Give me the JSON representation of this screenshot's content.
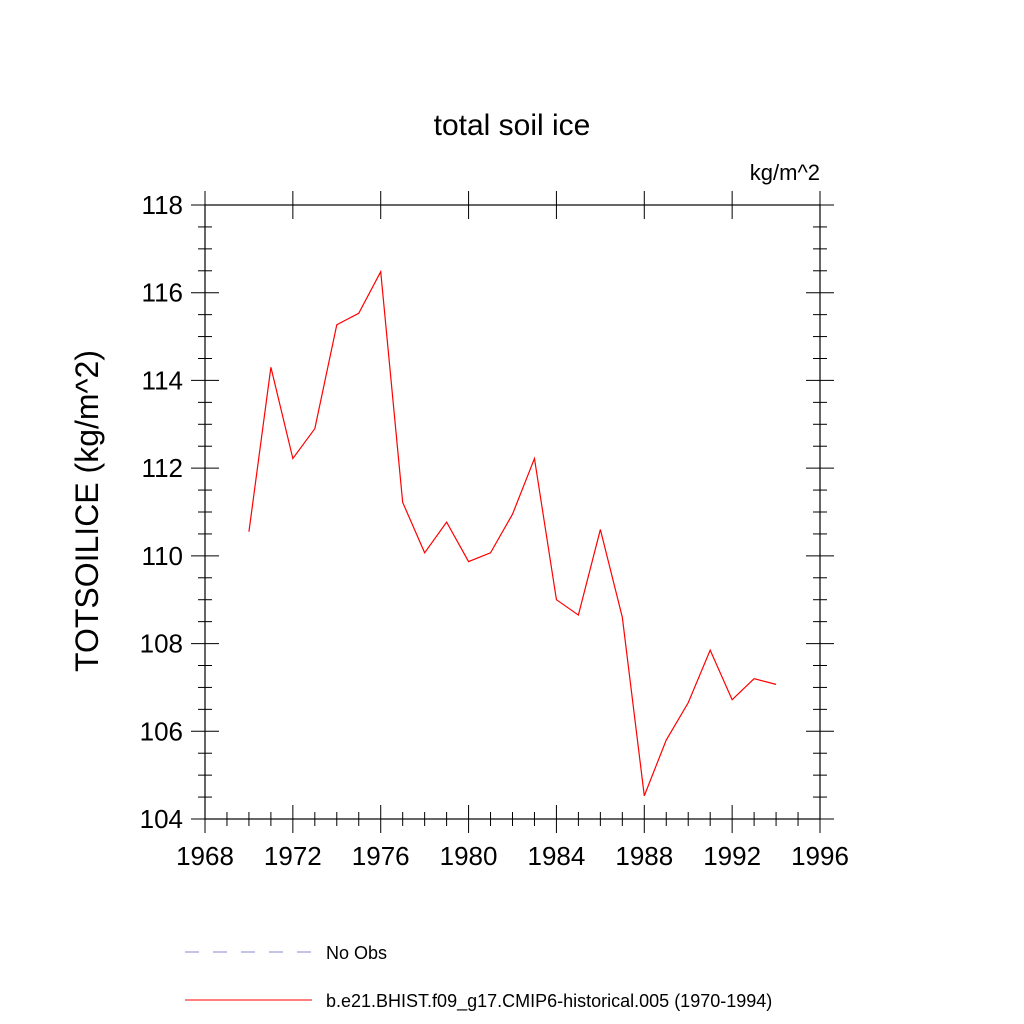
{
  "chart_data": {
    "type": "line",
    "title": "total soil ice",
    "units_label": "kg/m^2",
    "xlabel": "",
    "ylabel": "TOTSOILICE  (kg/m^2)",
    "xlim": [
      1968,
      1996
    ],
    "ylim": [
      104,
      118
    ],
    "xticks": [
      1968,
      1972,
      1976,
      1980,
      1984,
      1988,
      1992,
      1996
    ],
    "yticks": [
      104,
      106,
      108,
      110,
      112,
      114,
      116,
      118
    ],
    "grid": false,
    "legend_position": "bottom",
    "series": [
      {
        "name": "No Obs",
        "color": "#8a8ad0",
        "dash": "dashed",
        "x": [],
        "y": []
      },
      {
        "name": "b.e21.BHIST.f09_g17.CMIP6-historical.005 (1970-1994)",
        "color": "#ff0000",
        "dash": "solid",
        "x": [
          1970,
          1971,
          1972,
          1973,
          1974,
          1975,
          1976,
          1977,
          1978,
          1979,
          1980,
          1981,
          1982,
          1983,
          1984,
          1985,
          1986,
          1987,
          1988,
          1989,
          1990,
          1991,
          1992,
          1993,
          1994
        ],
        "y": [
          110.55,
          114.3,
          112.22,
          112.9,
          115.27,
          115.53,
          116.48,
          111.22,
          110.07,
          110.77,
          109.87,
          110.07,
          110.95,
          112.22,
          109.0,
          108.65,
          110.6,
          108.6,
          104.53,
          105.8,
          106.65,
          107.85,
          106.72,
          107.2,
          107.07
        ]
      }
    ]
  }
}
